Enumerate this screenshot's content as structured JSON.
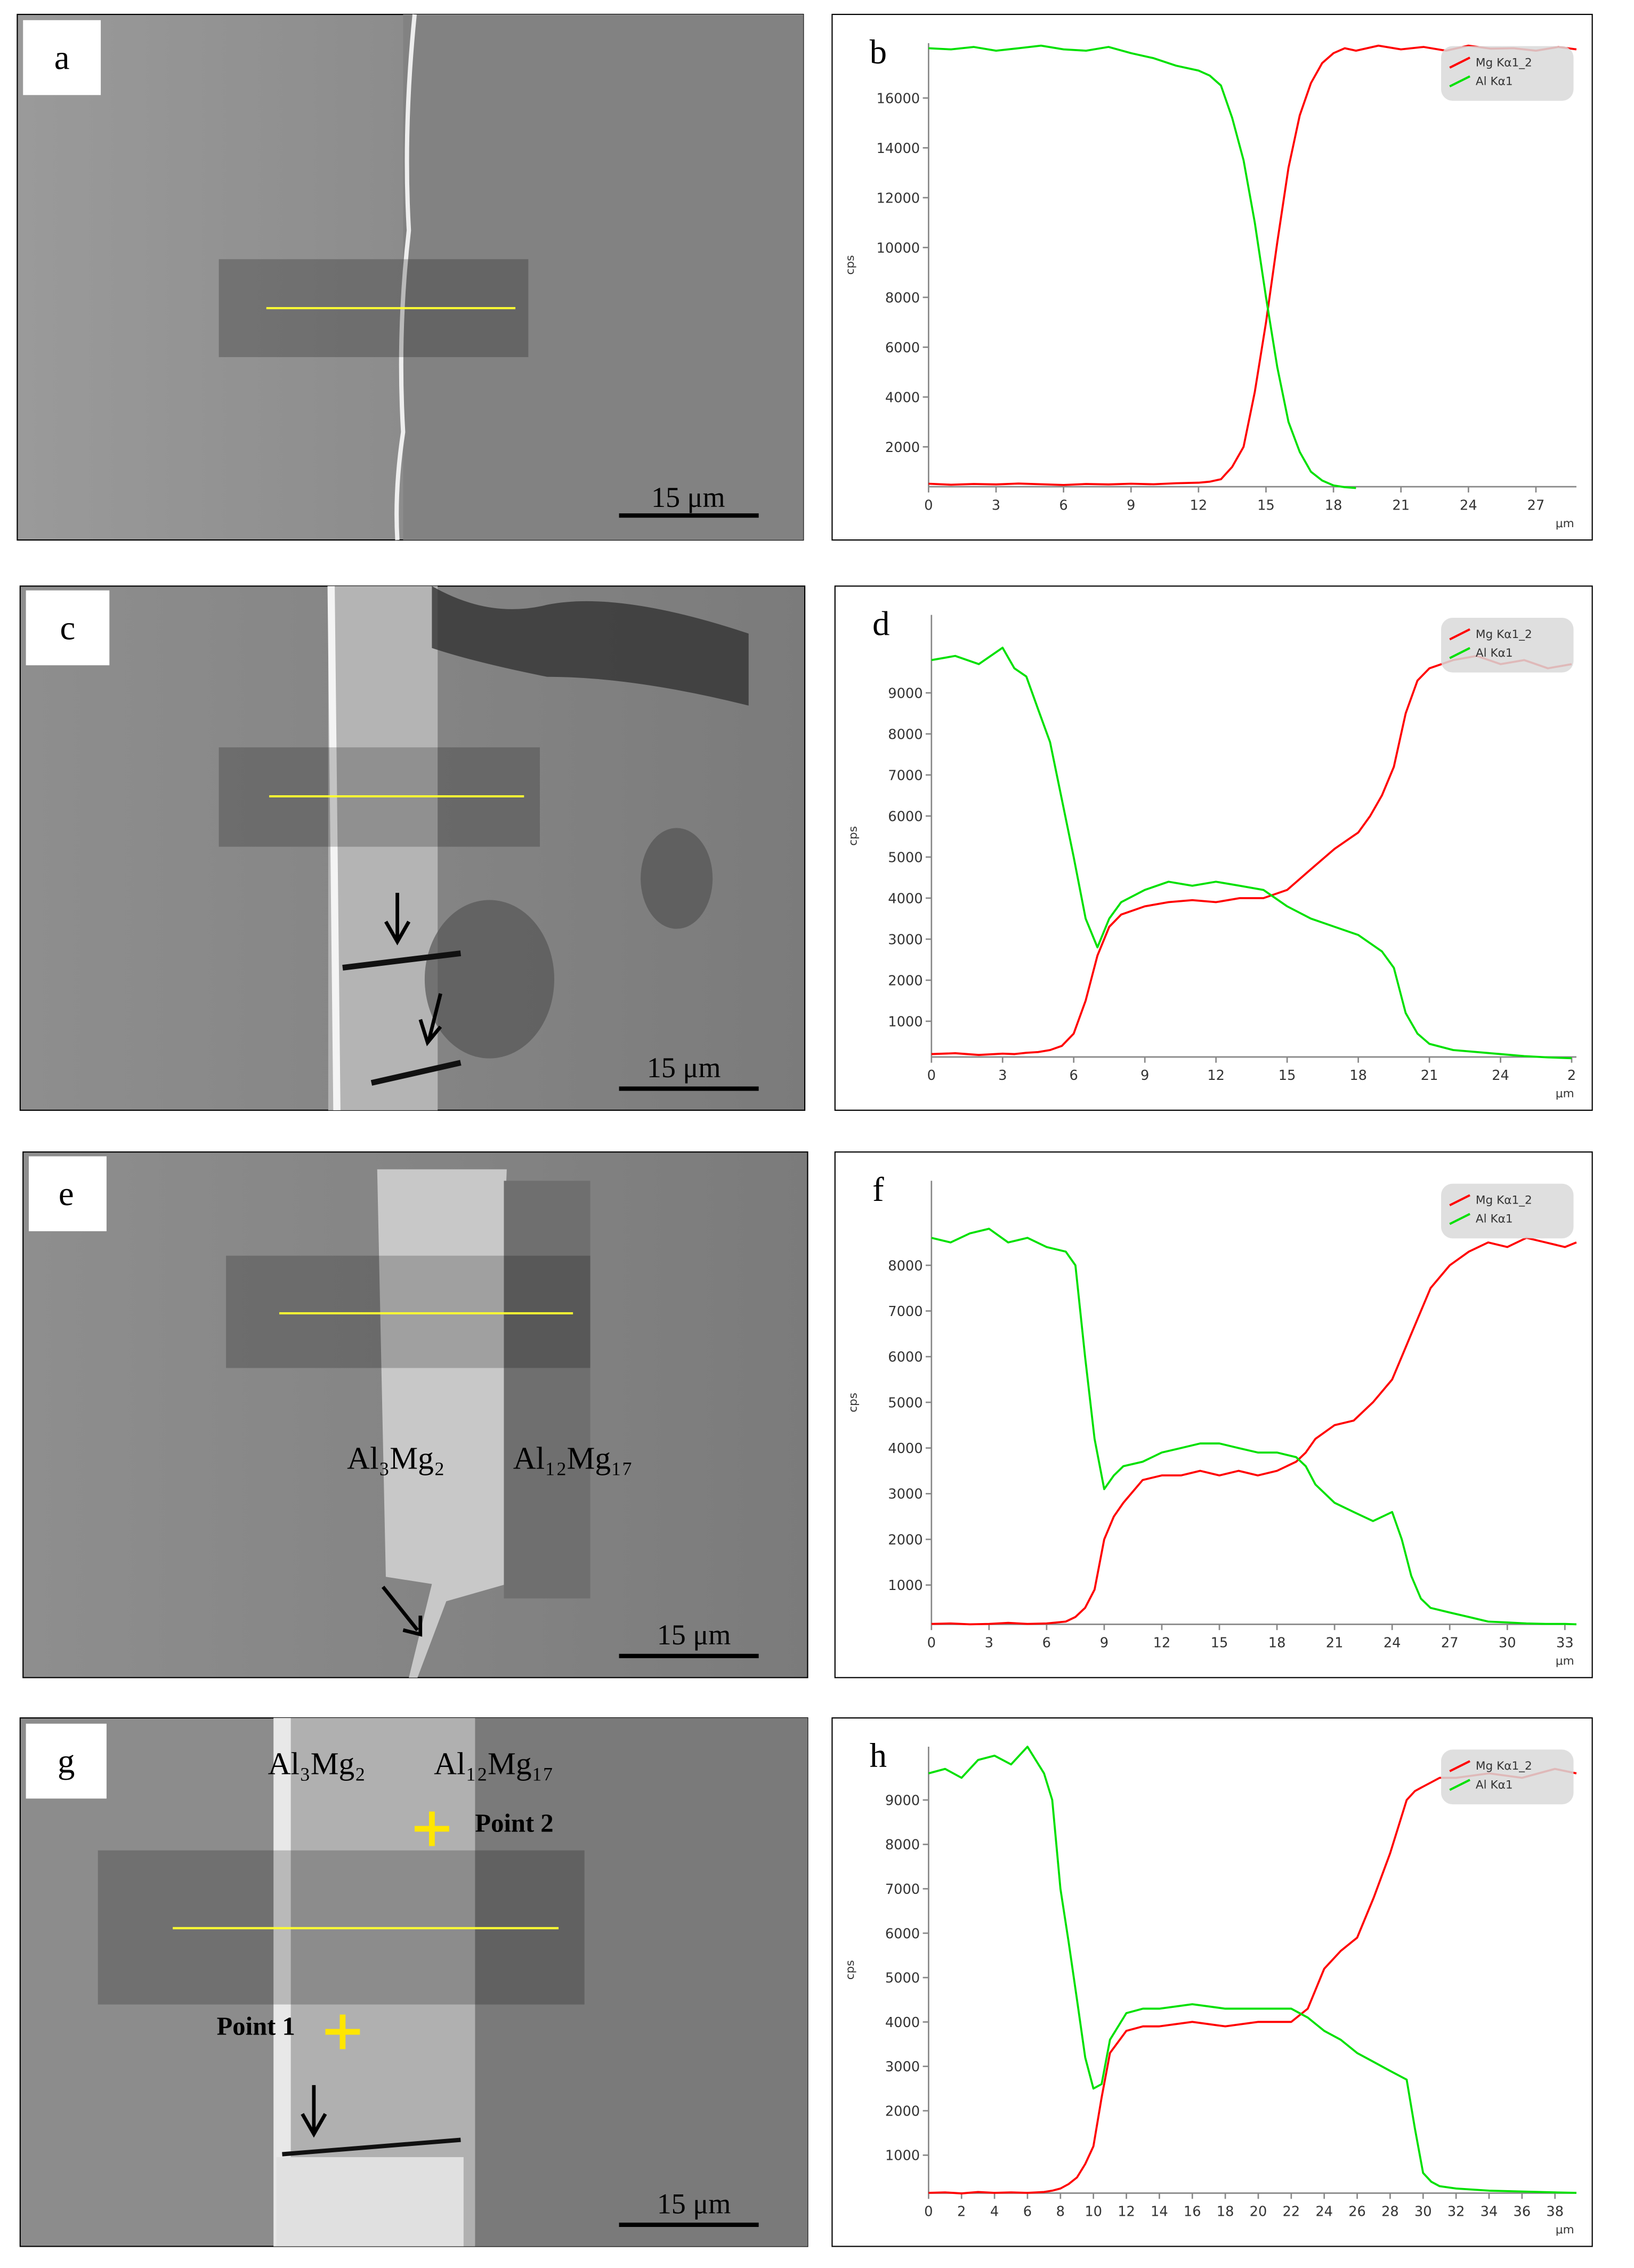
{
  "images": [
    {
      "label": "a",
      "scale_bar": "15 μm"
    },
    {
      "label": "c",
      "scale_bar": "15 μm"
    },
    {
      "label": "e",
      "scale_bar": "15 μm",
      "annotations": [
        "Al₃Mg₂",
        "Al₁₂Mg₁₇"
      ]
    },
    {
      "label": "g",
      "scale_bar": "15 μm",
      "annotations": [
        "Al₃Mg₂",
        "Al₁₂Mg₁₇",
        "Point 2",
        "Point 1"
      ]
    }
  ],
  "chart_data": [
    {
      "type": "line",
      "label": "b",
      "y_label": "cps",
      "x_label": "μm",
      "legend": "upper right",
      "x": [
        0,
        1,
        2,
        3,
        4,
        5,
        6,
        7,
        8,
        9,
        10,
        11,
        12,
        12.5,
        13,
        13.5,
        14,
        14.5,
        15,
        15.5,
        16,
        16.5,
        17,
        17.5,
        18,
        18.5,
        19,
        20,
        21,
        22,
        23,
        24,
        25,
        26,
        27,
        28,
        28.8
      ],
      "series": [
        {
          "name": "Mg Kα1_2",
          "color": "#ff0000",
          "values": [
            520,
            480,
            510,
            490,
            530,
            500,
            470,
            510,
            490,
            520,
            500,
            540,
            560,
            600,
            700,
            1200,
            2000,
            4200,
            7000,
            10200,
            13200,
            15300,
            16600,
            17400,
            17800,
            18000,
            17900,
            18100,
            17950,
            18050,
            17900,
            18100,
            17980,
            18000,
            17900,
            18050,
            17950
          ]
        },
        {
          "name": "Al Kα1",
          "color": "#00e000",
          "values": [
            18000,
            17950,
            18050,
            17900,
            18000,
            18100,
            17950,
            17900,
            18050,
            17800,
            17600,
            17300,
            17100,
            16900,
            16500,
            15200,
            13500,
            11000,
            8000,
            5200,
            3000,
            1800,
            1000,
            650,
            450,
            380,
            350,
            null,
            null,
            null,
            null,
            null,
            null,
            null,
            null,
            null,
            null
          ]
        }
      ],
      "xlim": [
        0,
        28.8
      ],
      "ylim": [
        400,
        18200
      ],
      "xticks": [
        0,
        3,
        6,
        9,
        12,
        15,
        18,
        21,
        24,
        27
      ],
      "yticks": [
        2000,
        4000,
        6000,
        8000,
        10000,
        12000,
        14000,
        16000
      ]
    },
    {
      "type": "line",
      "label": "d",
      "y_label": "cps",
      "x_label": "μm",
      "legend": "upper right",
      "x": [
        0,
        1,
        2,
        3,
        3.5,
        4,
        4.5,
        5,
        5.5,
        6,
        6.5,
        7,
        7.5,
        8,
        9,
        10,
        11,
        12,
        13,
        14,
        15,
        16,
        17,
        18,
        18.5,
        19,
        19.5,
        20,
        20.5,
        21,
        22,
        23,
        24,
        25,
        26,
        27
      ],
      "series": [
        {
          "name": "Mg Kα1_2",
          "color": "#ff0000",
          "values": [
            200,
            220,
            180,
            210,
            200,
            230,
            250,
            300,
            400,
            700,
            1500,
            2600,
            3300,
            3600,
            3800,
            3900,
            3950,
            3900,
            4000,
            4000,
            4200,
            4700,
            5200,
            5600,
            6000,
            6500,
            7200,
            8500,
            9300,
            9600,
            9800,
            9900,
            9700,
            9800,
            9600,
            9700
          ]
        },
        {
          "name": "Al Kα1",
          "color": "#00e000",
          "values": [
            9800,
            9900,
            9700,
            10100,
            9600,
            9400,
            8600,
            7800,
            6400,
            5000,
            3500,
            2800,
            3500,
            3900,
            4200,
            4400,
            4300,
            4400,
            4300,
            4200,
            3800,
            3500,
            3300,
            3100,
            2900,
            2700,
            2300,
            1200,
            700,
            450,
            300,
            250,
            200,
            150,
            120,
            100
          ]
        }
      ],
      "xlim": [
        0,
        27.2
      ],
      "ylim": [
        130,
        10900
      ],
      "xticks": [
        0,
        3,
        6,
        9,
        12,
        15,
        18,
        21,
        24,
        {
          "value": 27,
          "label": "2"
        }
      ],
      "yticks": [
        1000,
        2000,
        3000,
        4000,
        5000,
        6000,
        7000,
        8000,
        9000
      ]
    },
    {
      "type": "line",
      "label": "f",
      "y_label": "cps",
      "x_label": "μm",
      "legend": "upper right",
      "x": [
        0,
        1,
        2,
        3,
        4,
        5,
        6,
        7,
        7.5,
        8,
        8.5,
        9,
        9.5,
        10,
        11,
        12,
        13,
        14,
        15,
        16,
        17,
        18,
        19,
        19.5,
        20,
        21,
        22,
        23,
        24,
        24.5,
        25,
        25.5,
        26,
        27,
        28,
        29,
        30,
        31,
        32,
        33,
        33.6
      ],
      "series": [
        {
          "name": "Mg Kα1_2",
          "color": "#ff0000",
          "values": [
            150,
            160,
            140,
            150,
            170,
            150,
            160,
            200,
            300,
            500,
            900,
            2000,
            2500,
            2800,
            3300,
            3400,
            3400,
            3500,
            3400,
            3500,
            3400,
            3500,
            3700,
            3900,
            4200,
            4500,
            4600,
            5000,
            5500,
            6000,
            6500,
            7000,
            7500,
            8000,
            8300,
            8500,
            8400,
            8600,
            8500,
            8400,
            8500
          ]
        },
        {
          "name": "Al Kα1",
          "color": "#00e000",
          "values": [
            8600,
            8500,
            8700,
            8800,
            8500,
            8600,
            8400,
            8300,
            8000,
            6000,
            4200,
            3100,
            3400,
            3600,
            3700,
            3900,
            4000,
            4100,
            4100,
            4000,
            3900,
            3900,
            3800,
            3600,
            3200,
            2800,
            2600,
            2400,
            2600,
            2000,
            1200,
            700,
            500,
            400,
            300,
            200,
            180,
            160,
            150,
            150,
            140
          ]
        }
      ],
      "xlim": [
        0,
        33.6
      ],
      "ylim": [
        140,
        9850
      ],
      "xticks": [
        0,
        3,
        6,
        9,
        12,
        15,
        18,
        21,
        24,
        27,
        30,
        33
      ],
      "yticks": [
        1000,
        2000,
        3000,
        4000,
        5000,
        6000,
        7000,
        8000
      ]
    },
    {
      "type": "line",
      "label": "h",
      "y_label": "cps",
      "x_label": "μm",
      "legend": "upper right",
      "x": [
        0,
        1,
        2,
        3,
        4,
        5,
        6,
        7,
        7.5,
        8,
        8.5,
        9,
        9.5,
        10,
        10.5,
        11,
        12,
        13,
        14,
        16,
        18,
        20,
        22,
        23,
        24,
        25,
        26,
        27,
        28,
        29,
        29.5,
        30,
        30.5,
        31,
        32,
        34,
        36,
        38,
        39.3
      ],
      "series": [
        {
          "name": "Mg Kα1_2",
          "color": "#ff0000",
          "values": [
            150,
            160,
            140,
            170,
            150,
            160,
            150,
            170,
            200,
            250,
            350,
            500,
            800,
            1200,
            2300,
            3300,
            3800,
            3900,
            3900,
            4000,
            3900,
            4000,
            4000,
            4300,
            5200,
            5600,
            5900,
            6800,
            7800,
            9000,
            9200,
            9300,
            9400,
            9500,
            9500,
            9600,
            9500,
            9700,
            9600
          ]
        },
        {
          "name": "Al Kα1",
          "color": "#00e000",
          "values": [
            9600,
            9700,
            9500,
            9900,
            10000,
            9800,
            10200,
            9600,
            9000,
            7000,
            5800,
            4500,
            3200,
            2500,
            2600,
            3600,
            4200,
            4300,
            4300,
            4400,
            4300,
            4300,
            4300,
            4100,
            3800,
            3600,
            3300,
            3100,
            2900,
            2700,
            1600,
            600,
            400,
            300,
            250,
            200,
            180,
            160,
            150
          ]
        }
      ],
      "xlim": [
        0,
        39.3
      ],
      "ylim": [
        145,
        10200
      ],
      "xticks": [
        0,
        2,
        4,
        6,
        8,
        10,
        12,
        14,
        16,
        18,
        20,
        22,
        24,
        26,
        28,
        30,
        32,
        34,
        36,
        38
      ],
      "yticks": [
        1000,
        2000,
        3000,
        4000,
        5000,
        6000,
        7000,
        8000,
        9000
      ]
    }
  ]
}
